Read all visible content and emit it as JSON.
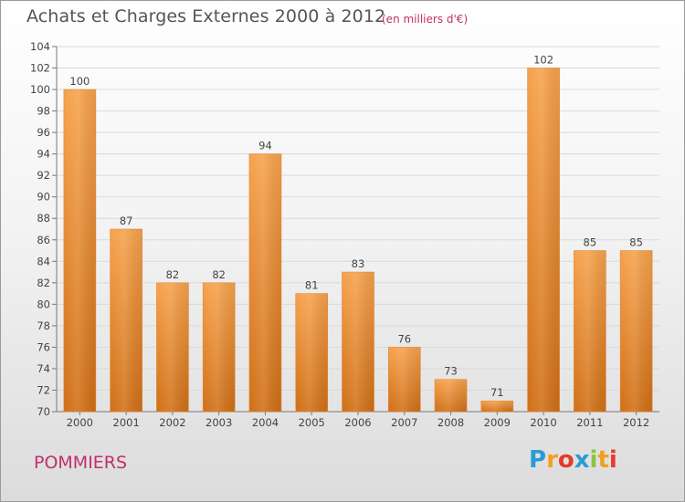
{
  "chart_data": {
    "type": "bar",
    "title": "Achats et Charges Externes 2000 à 2012",
    "subtitle": "(en milliers d'€)",
    "categories": [
      "2000",
      "2001",
      "2002",
      "2003",
      "2004",
      "2005",
      "2006",
      "2007",
      "2008",
      "2009",
      "2010",
      "2011",
      "2012"
    ],
    "values": [
      100,
      87,
      82,
      82,
      94,
      81,
      83,
      76,
      73,
      71,
      102,
      85,
      85
    ],
    "ylim": [
      70,
      104
    ],
    "yticks": [
      70,
      72,
      74,
      76,
      78,
      80,
      82,
      84,
      86,
      88,
      90,
      92,
      94,
      96,
      98,
      100,
      102,
      104
    ],
    "grid": true,
    "bar_color": "#f0963f",
    "legend": "none"
  },
  "footer": {
    "commune": "POMMIERS",
    "logo_letters": [
      "P",
      "r",
      "o",
      "x",
      "i",
      "t",
      "i"
    ],
    "logo_colors": [
      "#2a9bd6",
      "#f0a020",
      "#e8392a",
      "#2a9bd6",
      "#8cc63f",
      "#f0a020",
      "#e8392a"
    ]
  }
}
